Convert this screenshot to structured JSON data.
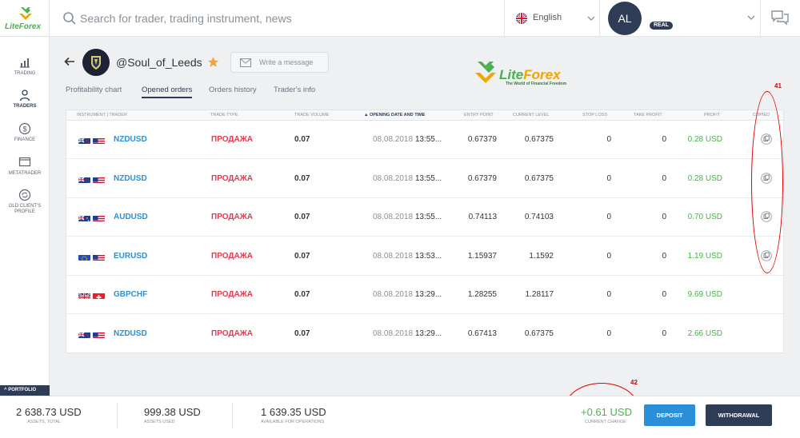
{
  "header": {
    "logo_text": "LiteForex",
    "search_placeholder": "Search for trader, trading instrument, news",
    "language": "English",
    "avatar_initials": "AL",
    "account_type": "REAL"
  },
  "sidebar": {
    "items": [
      {
        "label": "TRADING",
        "icon": "chart-icon"
      },
      {
        "label": "TRADERS",
        "icon": "traders-icon",
        "active": true
      },
      {
        "label": "FINANCE",
        "icon": "dollar-icon"
      },
      {
        "label": "METATRADER",
        "icon": "monitor-icon"
      },
      {
        "label": "OLD CLIENT'S PROFILE",
        "icon": "refresh-icon"
      }
    ],
    "portfolio_label": "PORTFOLIO"
  },
  "profile": {
    "trader_name": "@Soul_of_Leeds",
    "message_label": "Write a message"
  },
  "brand": {
    "name_left": "Lite",
    "name_right": "Forex",
    "tagline": "The World of Financial Freedom"
  },
  "tabs": [
    "Profitability chart",
    "Opened orders",
    "Orders history",
    "Trader's info"
  ],
  "active_tab": "Opened orders",
  "table": {
    "headers": {
      "instrument": "INSTRUMENT | TRADER",
      "trade_type": "TRADE TYPE",
      "trade_volume": "TRADE VOLUME",
      "opening_date": "▲ OPENING DATE AND TIME",
      "entry_point": "ENTRY POINT",
      "current_level": "CURRENT LEVEL",
      "stop_loss": "STOP LOSS",
      "take_profit": "TAKE PROFIT",
      "profit": "PROFIT",
      "copied": "COPIED"
    },
    "rows": [
      {
        "flags": [
          "nz",
          "us"
        ],
        "instrument": "NZDUSD",
        "type": "ПРОДАЖА",
        "volume": "0.07",
        "date": "08.08.2018",
        "time": "13:55...",
        "entry": "0.67379",
        "current": "0.67375",
        "sl": "0",
        "tp": "0",
        "profit": "0.28 USD",
        "copied": true
      },
      {
        "flags": [
          "nz",
          "us"
        ],
        "instrument": "NZDUSD",
        "type": "ПРОДАЖА",
        "volume": "0.07",
        "date": "08.08.2018",
        "time": "13:55...",
        "entry": "0.67379",
        "current": "0.67375",
        "sl": "0",
        "tp": "0",
        "profit": "0.28 USD",
        "copied": true
      },
      {
        "flags": [
          "au",
          "us"
        ],
        "instrument": "AUDUSD",
        "type": "ПРОДАЖА",
        "volume": "0.07",
        "date": "08.08.2018",
        "time": "13:55...",
        "entry": "0.74113",
        "current": "0.74103",
        "sl": "0",
        "tp": "0",
        "profit": "0.70 USD",
        "copied": true
      },
      {
        "flags": [
          "eu",
          "us"
        ],
        "instrument": "EURUSD",
        "type": "ПРОДАЖА",
        "volume": "0.07",
        "date": "08.08.2018",
        "time": "13:53...",
        "entry": "1.15937",
        "current": "1.1592",
        "sl": "0",
        "tp": "0",
        "profit": "1.19 USD",
        "copied": true
      },
      {
        "flags": [
          "gb",
          "ch"
        ],
        "instrument": "GBPCHF",
        "type": "ПРОДАЖА",
        "volume": "0.07",
        "date": "08.08.2018",
        "time": "13:29...",
        "entry": "1.28255",
        "current": "1.28117",
        "sl": "0",
        "tp": "0",
        "profit": "9.69 USD",
        "copied": false
      },
      {
        "flags": [
          "nz",
          "us"
        ],
        "instrument": "NZDUSD",
        "type": "ПРОДАЖА",
        "volume": "0.07",
        "date": "08.08.2018",
        "time": "13:29...",
        "entry": "0.67413",
        "current": "0.67375",
        "sl": "0",
        "tp": "0",
        "profit": "2.66 USD",
        "copied": false
      }
    ]
  },
  "annotations": {
    "copied_number": "41",
    "change_number": "42"
  },
  "footer": {
    "assets_total_value": "2 638.73 USD",
    "assets_total_caption": "ASSETS, TOTAL",
    "assets_used_value": "999.38 USD",
    "assets_used_caption": "ASSETS USED",
    "available_value": "1 639.35 USD",
    "available_caption": "AVAILABLE FOR OPERATIONS",
    "current_change_value": "+0.61 USD",
    "current_change_caption": "CURRENT CHANGE",
    "deposit_label": "DEPOSIT",
    "withdrawal_label": "WITHDRAWAL"
  },
  "colors": {
    "accent_blue": "#2b8fd8",
    "navy": "#2e3d55",
    "sell_red": "#e53950",
    "profit_green": "#4caf50",
    "annotation_red": "#e00000"
  }
}
